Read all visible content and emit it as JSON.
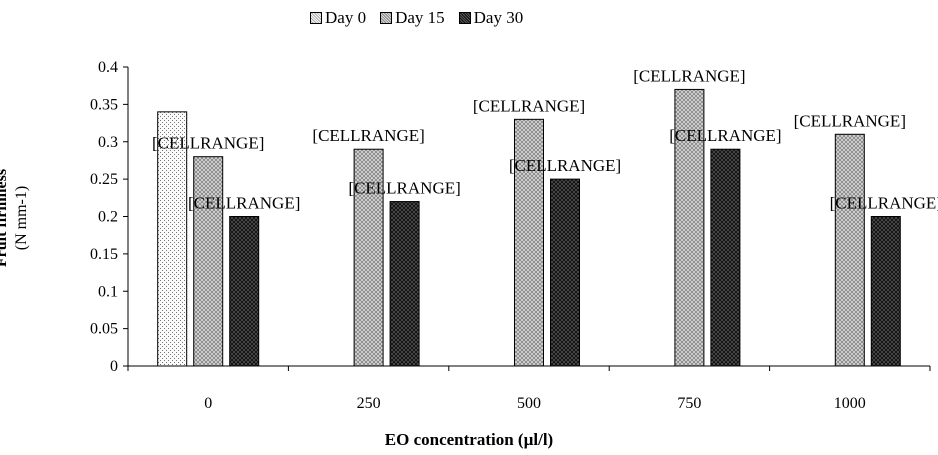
{
  "chart_data": {
    "type": "bar",
    "title": "",
    "xlabel": "EO concentration (µl/l)",
    "ylabel": "Fruit firmness",
    "ylabel_unit": "(N mm-1)",
    "categories": [
      "0",
      "250",
      "500",
      "750",
      "1000"
    ],
    "ylim": [
      0,
      0.4
    ],
    "yticks": [
      "0",
      "0.05",
      "0.1",
      "0.15",
      "0.2",
      "0.25",
      "0.3",
      "0.35",
      "0.4"
    ],
    "grid": false,
    "legend_position": "top",
    "series": [
      {
        "name": "Day 0",
        "values": [
          0.34,
          null,
          null,
          null,
          null
        ],
        "labels": [
          "",
          "",
          "",
          "",
          ""
        ]
      },
      {
        "name": "Day 15",
        "values": [
          0.28,
          0.29,
          0.33,
          0.37,
          0.31
        ],
        "labels": [
          "[CELLRANGE]",
          "[CELLRANGE]",
          "[CELLRANGE]",
          "[CELLRANGE]",
          "[CELLRANGE]"
        ]
      },
      {
        "name": "Day 30",
        "values": [
          0.2,
          0.22,
          0.25,
          0.29,
          0.2
        ],
        "labels": [
          "[CELLRANGE]",
          "[CELLRANGE]",
          "[CELLRANGE]",
          "[CELLRANGE]",
          "[CELLRANGE]"
        ]
      }
    ],
    "colors": [
      "#f2f2f2",
      "#bfbfbf",
      "#3a3a3a"
    ]
  }
}
